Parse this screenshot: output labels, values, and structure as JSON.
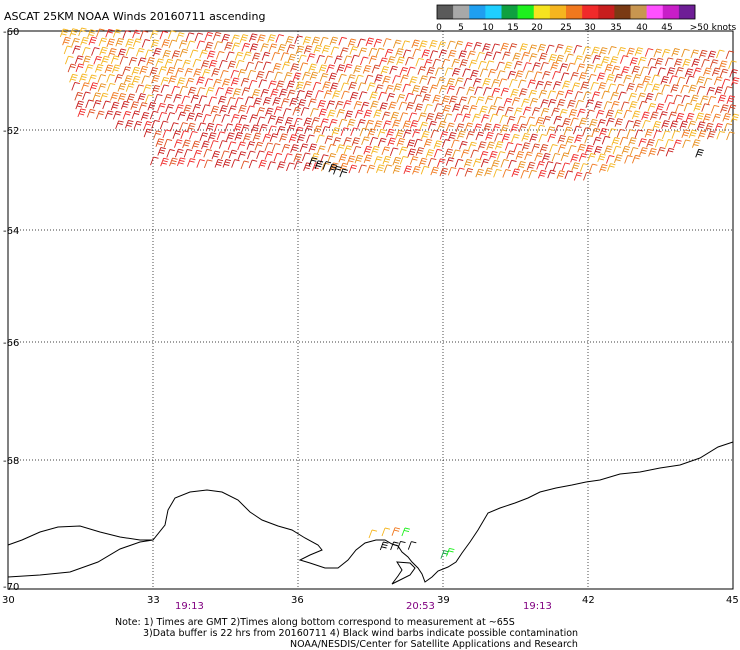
{
  "title": "ASCAT 25KM NOAA Winds 20160711 ascending",
  "colorbar": {
    "colors": [
      "#5a5a5a",
      "#a8a8a8",
      "#1f9ff0",
      "#1fcfff",
      "#0fa040",
      "#1ef01e",
      "#f5e31f",
      "#f5b51f",
      "#f0781e",
      "#f02a2a",
      "#c81e1e",
      "#7a3a14",
      "#c89650",
      "#ff50ff",
      "#c81ec8",
      "#6e1e96"
    ],
    "labels": [
      "0",
      "5",
      "10",
      "15",
      "20",
      "25",
      "30",
      "35",
      "40",
      "45",
      ">50 knots"
    ]
  },
  "lat_labels": [
    "-60",
    "-62",
    "-64",
    "-66",
    "-68",
    "-70"
  ],
  "lon_labels": [
    "30",
    "33",
    "36",
    "39",
    "42",
    "45"
  ],
  "times": [
    "19:13",
    "20:53",
    "19:13"
  ],
  "notes": [
    "Note: 1) Times are GMT 2)Times along bottom correspond to measurement at ~65S",
    "3)Data buffer is 22 hrs from 20160711 4) Black wind barbs indicate possible contamination",
    "NOAA/NESDIS/Center for Satellite Applications and Research"
  ],
  "colors": {
    "frame": "#000000",
    "grid": "#000000",
    "time": "#800080",
    "coast": "#000000"
  }
}
